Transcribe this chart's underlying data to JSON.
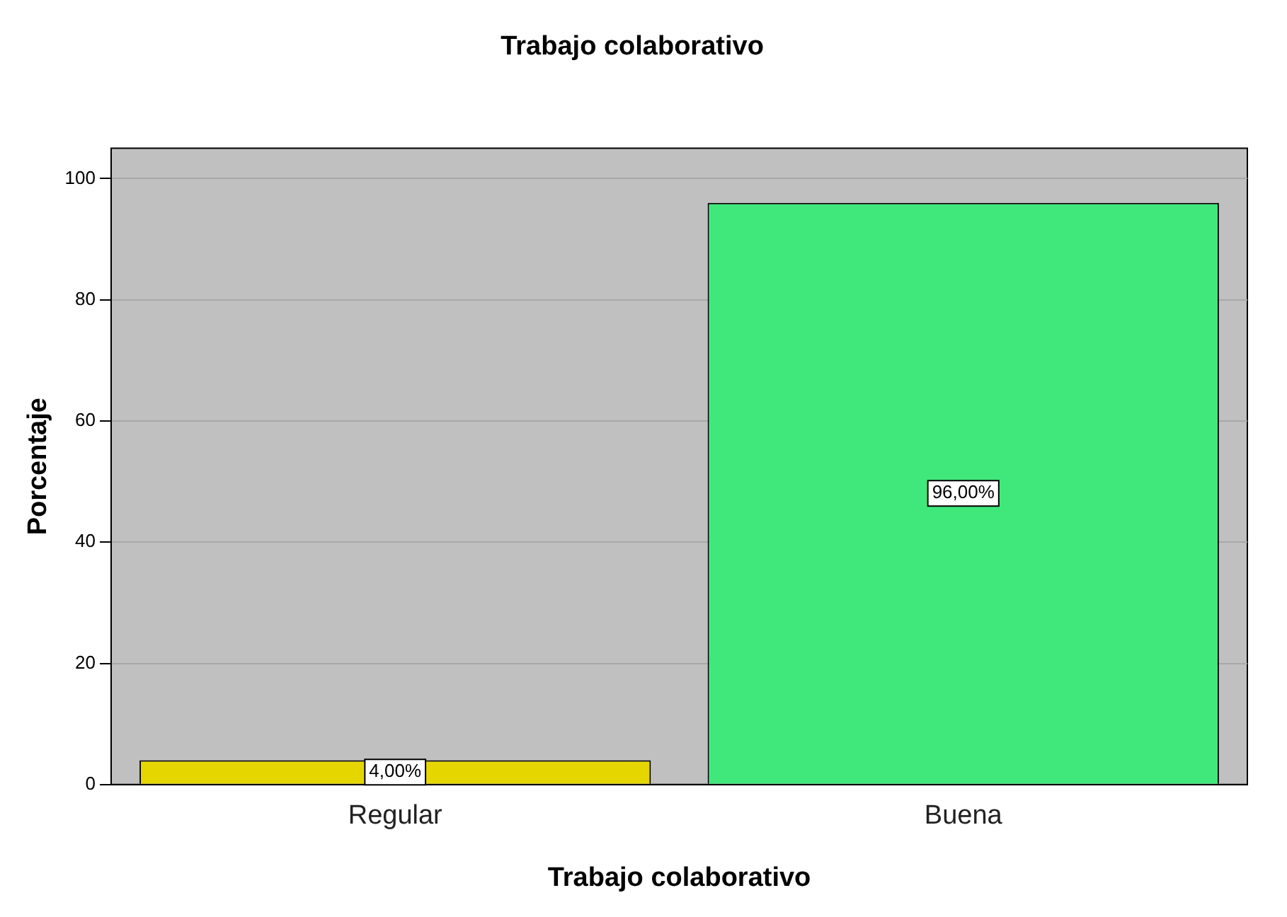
{
  "chart_data": {
    "type": "bar",
    "title": "Trabajo colaborativo",
    "xlabel": "Trabajo colaborativo",
    "ylabel": "Porcentaje",
    "categories": [
      "Regular",
      "Buena"
    ],
    "values": [
      4,
      96
    ],
    "colors": [
      "#e6d600",
      "#40e87c"
    ],
    "value_labels": [
      "4,00%",
      "96,00%"
    ],
    "ylim": [
      0,
      105
    ],
    "yticks": [
      0,
      20,
      40,
      60,
      80,
      100
    ],
    "grid": "y",
    "legend": false
  }
}
